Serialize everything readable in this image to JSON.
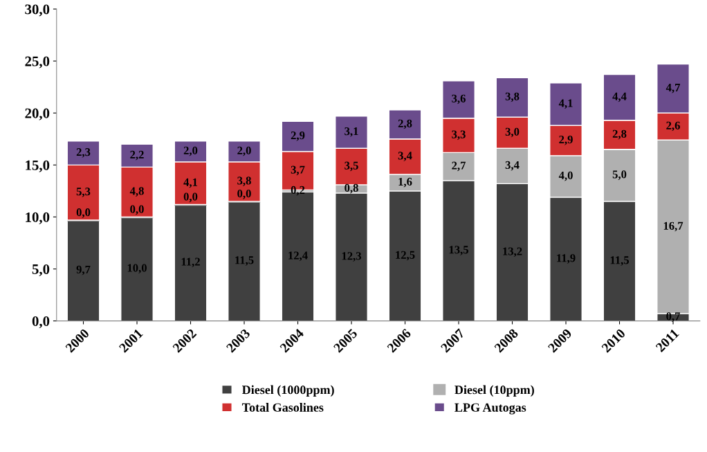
{
  "chart_data": {
    "type": "bar",
    "stacked": true,
    "categories": [
      "2000",
      "2001",
      "2002",
      "2003",
      "2004",
      "2005",
      "2006",
      "2007",
      "2008",
      "2009",
      "2010",
      "2011"
    ],
    "series": [
      {
        "name": "Diesel (1000ppm)",
        "color": "#404040",
        "values": [
          9.7,
          10.0,
          11.2,
          11.5,
          12.4,
          12.3,
          12.5,
          13.5,
          13.2,
          11.9,
          11.5,
          0.7
        ],
        "value_labels": [
          "9,7",
          "10,0",
          "11,2",
          "11,5",
          "12,4",
          "12,3",
          "12,5",
          "13,5",
          "13,2",
          "11,9",
          "11,5",
          "0,7"
        ]
      },
      {
        "name": "Diesel (10ppm)",
        "color": "#b0b0b0",
        "values": [
          0.0,
          0.0,
          0.0,
          0.0,
          0.2,
          0.8,
          1.6,
          2.7,
          3.4,
          4.0,
          5.0,
          16.7
        ],
        "value_labels": [
          "0,0",
          "0,0",
          "0,0",
          "0,0",
          "0,2",
          "0,8",
          "1,6",
          "2,7",
          "3,4",
          "4,0",
          "5,0",
          "16,7"
        ]
      },
      {
        "name": "Total Gasolines",
        "color": "#d03030",
        "values": [
          5.3,
          4.8,
          4.1,
          3.8,
          3.7,
          3.5,
          3.4,
          3.3,
          3.0,
          2.9,
          2.8,
          2.6
        ],
        "value_labels": [
          "5,3",
          "4,8",
          "4,1",
          "3,8",
          "3,7",
          "3,5",
          "3,4",
          "3,3",
          "3,0",
          "2,9",
          "2,8",
          "2,6"
        ]
      },
      {
        "name": "LPG Autogas",
        "color": "#6a4c8c",
        "values": [
          2.3,
          2.2,
          2.0,
          2.0,
          2.9,
          3.1,
          2.8,
          3.6,
          3.8,
          4.1,
          4.4,
          4.7
        ],
        "value_labels": [
          "2,3",
          "2,2",
          "2,0",
          "2,0",
          "2,9",
          "3,1",
          "2,8",
          "3,6",
          "3,8",
          "4,1",
          "4,4",
          "4,7"
        ]
      }
    ],
    "ylim": [
      0,
      30
    ],
    "yticks": [
      {
        "value": 0,
        "label": "0,0"
      },
      {
        "value": 5,
        "label": "5,0"
      },
      {
        "value": 10,
        "label": "10,0"
      },
      {
        "value": 15,
        "label": "15,0"
      },
      {
        "value": 20,
        "label": "20,0"
      },
      {
        "value": 25,
        "label": "25,0"
      },
      {
        "value": 30,
        "label": "30,0"
      }
    ],
    "grid": false,
    "legend": "bottom"
  }
}
